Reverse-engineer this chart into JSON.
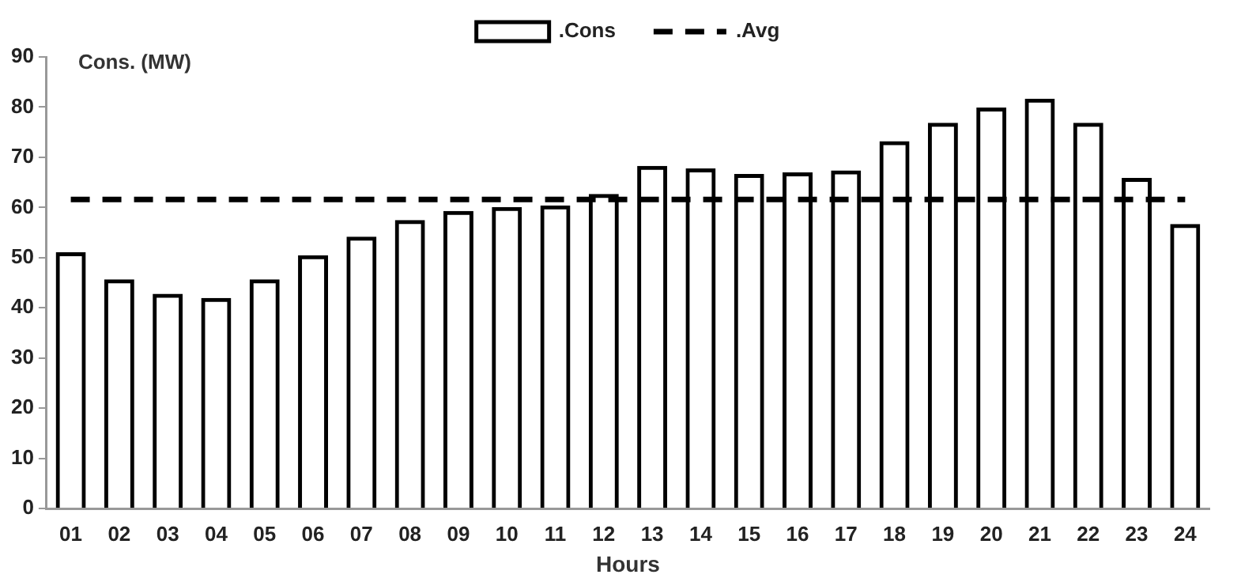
{
  "chart_data": {
    "type": "bar",
    "xlabel": "Hours",
    "ylabel": "Cons. (MW)",
    "categories": [
      "01",
      "02",
      "03",
      "04",
      "05",
      "06",
      "07",
      "08",
      "09",
      "10",
      "11",
      "12",
      "13",
      "14",
      "15",
      "16",
      "17",
      "18",
      "19",
      "20",
      "21",
      "22",
      "23",
      "24"
    ],
    "series": [
      {
        "name": ".Cons",
        "color": "#000000",
        "values": [
          51.1,
          45.7,
          42.8,
          42.0,
          45.7,
          50.5,
          54.2,
          57.5,
          59.3,
          60.1,
          60.4,
          62.7,
          68.3,
          67.8,
          66.7,
          67.0,
          67.4,
          73.2,
          76.9,
          79.9,
          81.7,
          76.9,
          65.9,
          56.7
        ]
      },
      {
        "name": ".Avg",
        "type": "line",
        "color": "#000000",
        "line_style": "dashed",
        "marker": "none",
        "values": [
          61.6,
          61.6,
          61.6,
          61.6,
          61.6,
          61.6,
          61.6,
          61.6,
          61.6,
          61.6,
          61.6,
          61.6,
          61.6,
          61.6,
          61.6,
          61.6,
          61.6,
          61.6,
          61.6,
          61.6,
          61.6,
          61.6,
          61.6,
          61.6
        ]
      }
    ],
    "ylim": [
      0,
      90
    ],
    "yticks": [
      0,
      10,
      20,
      30,
      40,
      50,
      60,
      70,
      80,
      90
    ],
    "grid": false,
    "legend": "top"
  }
}
